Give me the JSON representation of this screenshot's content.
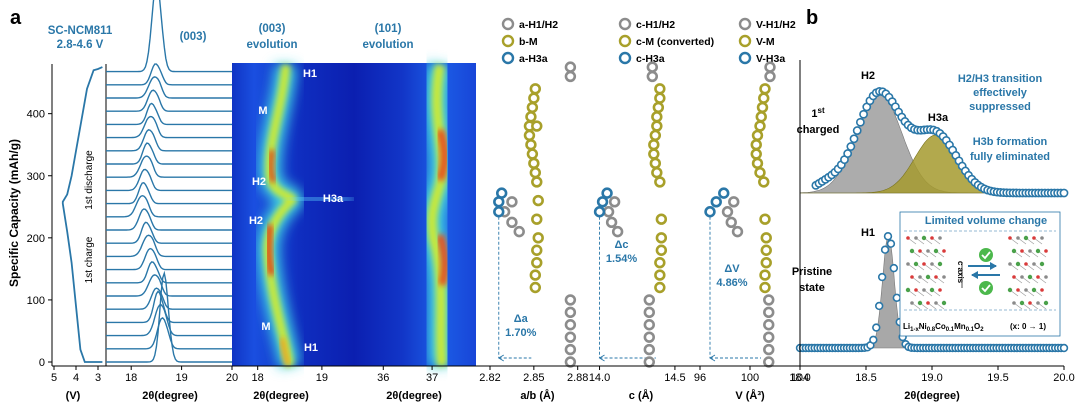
{
  "panels": {
    "a": "a",
    "b": "b"
  },
  "colors": {
    "blue": "#2a77a8",
    "blueDark": "#1f5f8a",
    "gray": "#8c8c8c",
    "olive": "#a8a02a",
    "oliveFill": "#a59a2e",
    "grayFill": "#9e9e9e"
  },
  "chart_data": [
    {
      "type": "line",
      "title": "SC-NCM811",
      "subtitle": "2.8-4.6 V",
      "xlabel": "(V)",
      "ylabel": "Specific Capacity (mAh/g)",
      "xticks": [
        "5",
        "4",
        "3"
      ],
      "yticks": [
        "0",
        "100",
        "200",
        "300",
        "400"
      ],
      "annotations": [
        "1st discharge",
        "1st charge"
      ],
      "x": [
        2.8,
        3.6,
        3.8,
        4.0,
        4.2,
        4.4,
        4.6,
        4.6,
        4.4,
        4.2,
        4.0,
        3.8,
        3.6,
        3.5,
        3.3,
        3.2,
        3.0,
        2.8
      ],
      "y": [
        0,
        0,
        20,
        90,
        160,
        210,
        255,
        258,
        270,
        300,
        340,
        380,
        420,
        440,
        460,
        470,
        472,
        475
      ],
      "xlim": [
        5,
        3
      ],
      "ylim": [
        0,
        480
      ]
    },
    {
      "type": "line",
      "title": "(003)",
      "xlabel": "2θ(degree)",
      "xticks": [
        "18",
        "19",
        "20"
      ],
      "xlim": [
        17.5,
        20
      ],
      "series_count": 23
    },
    {
      "type": "heatmap",
      "title": "(003) evolution",
      "xlabel": "2θ(degree)",
      "xticks": [
        "18",
        "19"
      ],
      "labels": [
        "H1",
        "M",
        "H2",
        "H3a",
        "H2",
        "M",
        "H1"
      ]
    },
    {
      "type": "heatmap",
      "title": "(101) evolution",
      "xlabel": "2θ(degree)",
      "xticks": [
        "36",
        "37"
      ]
    },
    {
      "type": "scatter",
      "legend": [
        {
          "name": "a-H1/H2",
          "color": "#8c8c8c"
        },
        {
          "name": "b-M",
          "color": "#a8a02a"
        },
        {
          "name": "a-H3a",
          "color": "#2a77a8"
        },
        {
          "name": "c-H1/H2",
          "color": "#8c8c8c"
        },
        {
          "name": "c-M (converted)",
          "color": "#a8a02a"
        },
        {
          "name": "c-H3a",
          "color": "#2a77a8"
        },
        {
          "name": "V-H1/H2",
          "color": "#8c8c8c"
        },
        {
          "name": "V-M",
          "color": "#a8a02a"
        },
        {
          "name": "V-H3a",
          "color": "#2a77a8"
        }
      ],
      "subplots": [
        {
          "xlabel": "a/b (Å)",
          "xticks": [
            "2.82",
            "2.85",
            "2.88"
          ],
          "xlim": [
            2.82,
            2.885
          ],
          "delta_label": "Δa",
          "delta_value": "1.70%",
          "H1H2": {
            "x": [
              2.875,
              2.875,
              2.875,
              2.875,
              2.875,
              2.875,
              2.84,
              2.835,
              2.83,
              2.835,
              2.875,
              2.875
            ],
            "y": [
              0,
              20,
              40,
              60,
              80,
              100,
              210,
              225,
              242,
              258,
              460,
              475
            ]
          },
          "M": {
            "x": [
              2.851,
              2.851,
              2.852,
              2.852,
              2.853,
              2.852,
              2.851,
              2.85,
              2.849,
              2.848,
              2.847,
              2.847,
              2.848,
              2.849,
              2.85,
              2.851,
              2.852,
              2.853,
              2.852
            ],
            "y": [
              120,
              140,
              160,
              180,
              200,
              290,
              305,
              320,
              335,
              350,
              365,
              380,
              395,
              410,
              425,
              440,
              380,
              260,
              230
            ]
          },
          "H3a": {
            "x": [
              2.826,
              2.826,
              2.828
            ],
            "y": [
              242,
              258,
              272
            ]
          }
        },
        {
          "xlabel": "c (Å)",
          "xticks": [
            "14.0",
            "14.5"
          ],
          "xlim": [
            13.95,
            14.6
          ],
          "delta_label": "Δc",
          "delta_value": "1.54%",
          "H1H2": {
            "x": [
              14.33,
              14.33,
              14.33,
              14.33,
              14.33,
              14.33,
              14.12,
              14.08,
              14.06,
              14.1,
              14.35,
              14.35
            ],
            "y": [
              0,
              20,
              40,
              60,
              80,
              100,
              210,
              225,
              242,
              258,
              460,
              475
            ]
          },
          "M": {
            "x": [
              14.4,
              14.4,
              14.4,
              14.41,
              14.41,
              14.4,
              14.38,
              14.37,
              14.36,
              14.36,
              14.37,
              14.38,
              14.38,
              14.39,
              14.4,
              14.4,
              14.41
            ],
            "y": [
              120,
              140,
              160,
              180,
              200,
              290,
              305,
              320,
              335,
              350,
              365,
              380,
              395,
              410,
              425,
              440,
              230
            ]
          },
          "H3a": {
            "x": [
              14.0,
              14.02,
              14.05
            ],
            "y": [
              242,
              258,
              272
            ]
          }
        },
        {
          "xlabel": "V (Å³)",
          "xticks": [
            "96",
            "100",
            "104"
          ],
          "xlim": [
            96,
            104
          ],
          "delta_label": "ΔV",
          "delta_value": "4.86%",
          "H1H2": {
            "x": [
              101.5,
              101.5,
              101.5,
              101.5,
              101.5,
              101.5,
              99.0,
              98.5,
              98.2,
              98.7,
              101.6,
              101.6
            ],
            "y": [
              0,
              20,
              40,
              60,
              80,
              100,
              210,
              225,
              242,
              258,
              460,
              475
            ]
          },
          "M": {
            "x": [
              101.2,
              101.2,
              101.3,
              101.3,
              101.3,
              101.1,
              100.8,
              100.6,
              100.5,
              100.5,
              100.6,
              100.8,
              100.9,
              101.0,
              101.1,
              101.2,
              101.2
            ],
            "y": [
              120,
              140,
              160,
              180,
              200,
              290,
              305,
              320,
              335,
              350,
              365,
              380,
              395,
              410,
              425,
              440,
              230
            ]
          },
          "H3a": {
            "x": [
              96.8,
              97.3,
              97.9
            ],
            "y": [
              242,
              258,
              272
            ]
          }
        }
      ]
    },
    {
      "type": "line",
      "xlabel": "2θ(degree)",
      "xticks": [
        "18.0",
        "18.5",
        "19.0",
        "19.5",
        "20.0"
      ],
      "xlim": [
        18.0,
        20.0
      ],
      "top": {
        "labels": [
          "H2",
          "H3a",
          "1st charged"
        ],
        "annotations": [
          "H2/H3 transition effectively suppressed",
          "H3b formation fully eliminated"
        ]
      },
      "bottom": {
        "labels": [
          "H1",
          "Pristine state"
        ],
        "inset_title": "Limited volume change",
        "inset_axis": "c axis",
        "inset_formula": "Li1-xNi0.8Co0.1Mn0.1O2 (x: 0 → 1)"
      }
    }
  ]
}
